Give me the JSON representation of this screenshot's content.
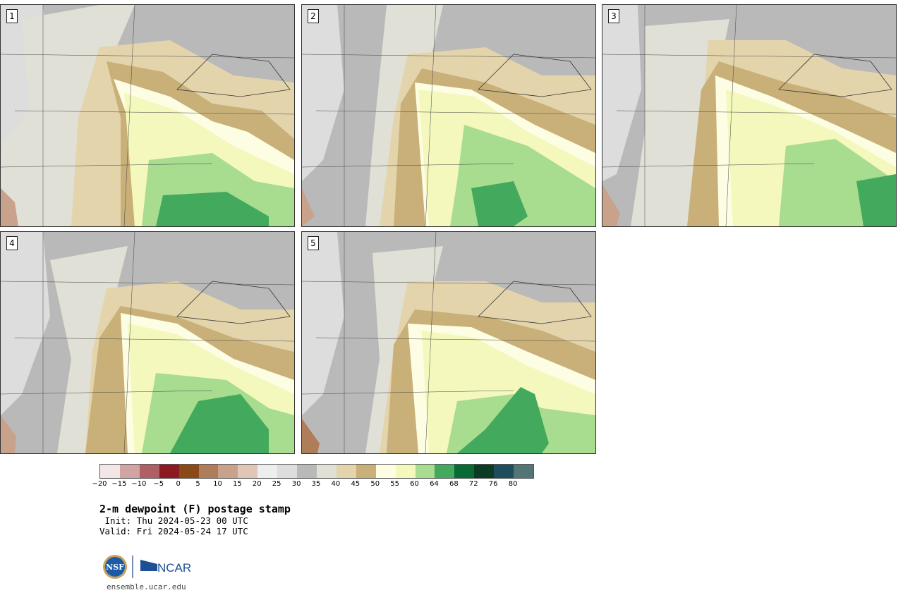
{
  "panels": [
    {
      "label": "1"
    },
    {
      "label": "2"
    },
    {
      "label": "3"
    },
    {
      "label": "4"
    },
    {
      "label": "5"
    }
  ],
  "colorbar": {
    "colors": [
      "#f3e6e6",
      "#d2a3a3",
      "#b05f64",
      "#8b1a22",
      "#8a4a18",
      "#b07d5b",
      "#c9a28c",
      "#e0c6b6",
      "#eeeeee",
      "#dddddd",
      "#b9b9b9",
      "#e0e0d6",
      "#e3d4ac",
      "#c9b079",
      "#fdfde3",
      "#f4f8bc",
      "#a8dc8f",
      "#43a95d",
      "#086a34",
      "#0b3b22",
      "#1e4e5d",
      "#537575"
    ],
    "ticks": [
      "−20",
      "−15",
      "−10",
      "−5",
      "0",
      "5",
      "10",
      "15",
      "20",
      "25",
      "30",
      "35",
      "40",
      "45",
      "50",
      "55",
      "60",
      "64",
      "68",
      "72",
      "76",
      "80"
    ]
  },
  "title": "2-m dewpoint (F) postage stamp",
  "init": " Init: Thu 2024-05-23 00 UTC",
  "valid": "Valid: Fri 2024-05-24 17 UTC",
  "logos": {
    "nsf": "NSF",
    "ncar": "NCAR"
  },
  "site": "ensemble.ucar.edu"
}
